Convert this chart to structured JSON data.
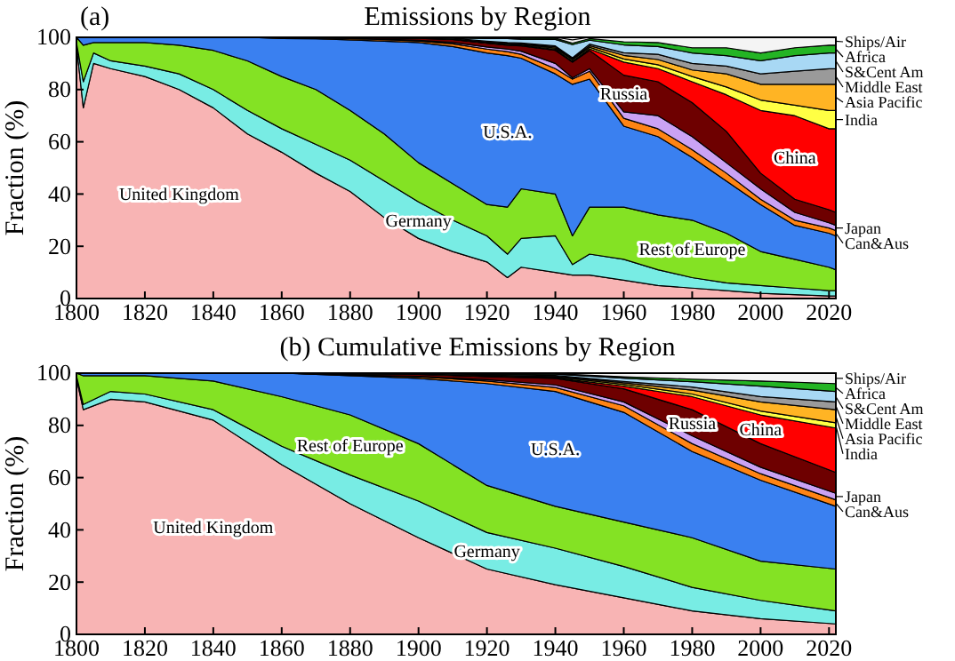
{
  "chart_data": [
    {
      "type": "area",
      "stacked": true,
      "legend": "right",
      "title": "Emissions by Region",
      "annotations": [
        "(a)"
      ],
      "ylabel": "Fraction (%)",
      "x": [
        1800,
        1802,
        1805,
        1810,
        1820,
        1830,
        1840,
        1850,
        1860,
        1870,
        1880,
        1890,
        1900,
        1910,
        1920,
        1926,
        1930,
        1940,
        1945,
        1950,
        1960,
        1970,
        1980,
        1990,
        2000,
        2010,
        2020,
        2022
      ],
      "xlim": [
        1800,
        2022
      ],
      "xticks": [
        1800,
        1820,
        1840,
        1860,
        1880,
        1900,
        1920,
        1940,
        1960,
        1980,
        2000,
        2020
      ],
      "ylim": [
        0,
        100
      ],
      "yticks": [
        0,
        20,
        40,
        60,
        80,
        100
      ],
      "series": [
        {
          "name": "United Kingdom",
          "color": "#f8b4b4",
          "values": [
            97,
            73,
            90,
            88,
            85,
            80,
            73,
            63,
            56,
            48,
            41,
            31,
            23,
            18,
            14,
            8,
            12,
            10,
            9,
            9,
            7,
            5,
            4,
            3,
            2,
            1.5,
            1,
            1
          ]
        },
        {
          "name": "Germany",
          "color": "#78ece4",
          "values": [
            1,
            10,
            4,
            3,
            4,
            6,
            7,
            9,
            9,
            11,
            12,
            14,
            14,
            12,
            10,
            9,
            11,
            14,
            4,
            8,
            8,
            6,
            4,
            3,
            3,
            2.5,
            2,
            2
          ]
        },
        {
          "name": "Rest of Europe",
          "color": "#84e224",
          "values": [
            2,
            14,
            4,
            7,
            9,
            11,
            15,
            19,
            20,
            21,
            19,
            18,
            15,
            14,
            12,
            18,
            19,
            16,
            11,
            18,
            20,
            21,
            22,
            19,
            13,
            11,
            9,
            8
          ]
        },
        {
          "name": "U.S.A.",
          "color": "#3a80f0",
          "values": [
            0,
            3,
            2,
            2,
            2,
            3,
            5,
            9,
            14.5,
            19.4,
            27,
            35.5,
            46,
            52.5,
            58,
            58,
            50,
            46,
            58,
            49,
            31,
            30,
            24,
            20,
            18,
            13,
            13,
            13
          ]
        },
        {
          "name": "Can&Aus",
          "color": "#ff8414",
          "values": [
            0,
            0,
            0,
            0,
            0,
            0,
            0,
            0,
            0.3,
            0.3,
            0.5,
            0.6,
            0.6,
            1,
            1.5,
            1.5,
            1.5,
            2,
            2,
            3,
            3,
            3,
            3,
            3,
            2,
            2,
            2,
            2
          ]
        },
        {
          "name": "Japan",
          "color": "#caa2f4",
          "values": [
            0,
            0,
            0,
            0,
            0,
            0,
            0,
            0,
            0,
            0.1,
            0.1,
            0.2,
            0.3,
            0.5,
            0.8,
            1,
            1.2,
            2,
            0.5,
            1,
            2.5,
            5,
            5,
            4,
            4,
            3,
            2,
            2
          ]
        },
        {
          "name": "Russia",
          "color": "#6e0000",
          "values": [
            0,
            0,
            0,
            0,
            0,
            0,
            0,
            0,
            0.2,
            0.2,
            0.4,
            0.5,
            0.7,
            1.2,
            1.4,
            1.5,
            2,
            5,
            6,
            7,
            14,
            13,
            13,
            12,
            6,
            5,
            5,
            5
          ]
        },
        {
          "name": "China",
          "color": "#ff0000",
          "values": [
            0,
            0,
            0,
            0,
            0,
            0,
            0,
            0,
            0,
            0,
            0,
            0,
            0,
            0,
            0.1,
            0.2,
            0.2,
            0.4,
            0.3,
            0.6,
            5,
            5,
            8,
            14,
            24,
            32,
            31,
            32
          ]
        },
        {
          "name": "India",
          "color": "#ffff44",
          "values": [
            0,
            0,
            0,
            0,
            0,
            0,
            0,
            0,
            0,
            0,
            0,
            0.1,
            0.2,
            0.3,
            0.4,
            0.4,
            0.4,
            0.5,
            0.6,
            0.6,
            1.2,
            1.5,
            2,
            3,
            4,
            4,
            7,
            7
          ]
        },
        {
          "name": "Asia Pacific",
          "color": "#ffb424",
          "values": [
            0,
            0,
            0,
            0,
            0,
            0,
            0,
            0,
            0,
            0,
            0,
            0,
            0,
            0.1,
            0.2,
            0.2,
            0.3,
            0.5,
            0.4,
            0.6,
            1.4,
            2,
            2.5,
            5,
            6,
            8,
            10,
            10
          ]
        },
        {
          "name": "Middle East",
          "color": "#9a9a9a",
          "values": [
            0,
            0,
            0,
            0,
            0,
            0,
            0,
            0,
            0,
            0,
            0,
            0,
            0,
            0,
            0.1,
            0.2,
            0.2,
            0.3,
            0.4,
            0.6,
            1,
            2,
            2.5,
            3,
            4,
            5,
            6,
            6
          ]
        },
        {
          "name": "S&Cent Am",
          "color": "#a8d8f4",
          "values": [
            0,
            0,
            0,
            0,
            0,
            0,
            0,
            0,
            0,
            0,
            0,
            0.1,
            0.1,
            0.2,
            1,
            1.5,
            1.5,
            2.5,
            5,
            1.5,
            3,
            3,
            4,
            4,
            5,
            6,
            6,
            6
          ]
        },
        {
          "name": "Africa",
          "color": "#24b424",
          "values": [
            0,
            0,
            0,
            0,
            0,
            0,
            0,
            0,
            0,
            0,
            0,
            0,
            0.1,
            0.2,
            0.3,
            0.3,
            0.4,
            0.5,
            0.6,
            0.6,
            1.2,
            1.5,
            2,
            3,
            3,
            3,
            3,
            3
          ]
        },
        {
          "name": "Ships/Air",
          "color": "#f4f4f4",
          "values": [
            0,
            0,
            0,
            0,
            0,
            0,
            0,
            0,
            0,
            0,
            0,
            0,
            0,
            0,
            0.2,
            0.2,
            0.3,
            0.3,
            1.2,
            0.5,
            1.7,
            2,
            4,
            4,
            6,
            4,
            3,
            3
          ]
        }
      ]
    },
    {
      "type": "area",
      "stacked": true,
      "legend": "right",
      "title": "(b)  Cumulative Emissions by Region",
      "ylabel": "Fraction (%)",
      "x": [
        1800,
        1802,
        1810,
        1820,
        1840,
        1860,
        1880,
        1900,
        1920,
        1940,
        1960,
        1980,
        2000,
        2022
      ],
      "xlim": [
        1800,
        2022
      ],
      "xticks": [
        1800,
        1820,
        1840,
        1860,
        1880,
        1900,
        1920,
        1940,
        1960,
        1980,
        2000,
        2020
      ],
      "ylim": [
        0,
        100
      ],
      "yticks": [
        0,
        20,
        40,
        60,
        80,
        100
      ],
      "series": [
        {
          "name": "United Kingdom",
          "color": "#f8b4b4",
          "values": [
            98,
            86,
            90,
            89,
            82,
            65,
            50,
            37,
            25,
            19,
            14,
            9,
            6,
            4
          ]
        },
        {
          "name": "Germany",
          "color": "#78ece4",
          "values": [
            1,
            2,
            3,
            3,
            4,
            7,
            11,
            14,
            14,
            14,
            12,
            9,
            7,
            5
          ]
        },
        {
          "name": "Rest of Europe",
          "color": "#84e224",
          "values": [
            1,
            11,
            6,
            7,
            11,
            19,
            23,
            22,
            18,
            16,
            17,
            19,
            15,
            16
          ]
        },
        {
          "name": "U.S.A.",
          "color": "#3a80f0",
          "values": [
            0,
            1,
            1,
            1,
            3,
            9,
            15,
            25,
            39,
            44,
            42,
            33,
            31,
            24
          ]
        },
        {
          "name": "Can&Aus",
          "color": "#ff8414",
          "values": [
            0,
            0,
            0,
            0,
            0,
            0,
            0.3,
            0.6,
            1,
            1.5,
            2.5,
            3,
            2.5,
            2.5
          ]
        },
        {
          "name": "Japan",
          "color": "#caa2f4",
          "values": [
            0,
            0,
            0,
            0,
            0,
            0,
            0,
            0.2,
            0.5,
            1,
            1.5,
            3,
            2.5,
            2.5
          ]
        },
        {
          "name": "Russia",
          "color": "#6e0000",
          "values": [
            0,
            0,
            0,
            0,
            0,
            0,
            0.4,
            0.7,
            1.2,
            2.5,
            5,
            10,
            9,
            8
          ]
        },
        {
          "name": "China",
          "color": "#ff0000",
          "values": [
            0,
            0,
            0,
            0,
            0,
            0,
            0,
            0,
            0.1,
            0.2,
            1,
            5,
            11,
            17
          ]
        },
        {
          "name": "India",
          "color": "#ffff44",
          "values": [
            0,
            0,
            0,
            0,
            0,
            0,
            0.1,
            0.2,
            0.3,
            0.4,
            0.7,
            1,
            1.5,
            2
          ]
        },
        {
          "name": "Asia Pacific",
          "color": "#ffb424",
          "values": [
            0,
            0,
            0,
            0,
            0,
            0,
            0,
            0.1,
            0.2,
            0.3,
            0.6,
            1.5,
            3.5,
            5
          ]
        },
        {
          "name": "Middle East",
          "color": "#9a9a9a",
          "values": [
            0,
            0,
            0,
            0,
            0,
            0,
            0,
            0,
            0.1,
            0.2,
            0.5,
            1.2,
            2,
            3
          ]
        },
        {
          "name": "S&Cent Am",
          "color": "#a8d8f4",
          "values": [
            0,
            0,
            0,
            0,
            0,
            0,
            0.1,
            0.1,
            0.3,
            0.5,
            1.3,
            2,
            4,
            4
          ]
        },
        {
          "name": "Africa",
          "color": "#24b424",
          "values": [
            0,
            0,
            0,
            0,
            0,
            0,
            0.1,
            0.1,
            0.2,
            0.2,
            0.5,
            1,
            2,
            3
          ]
        },
        {
          "name": "Ships/Air",
          "color": "#f4f4f4",
          "values": [
            0,
            0,
            0,
            0,
            0,
            0,
            0,
            0,
            0.1,
            0.2,
            1.4,
            2.3,
            3,
            4
          ]
        }
      ]
    }
  ]
}
